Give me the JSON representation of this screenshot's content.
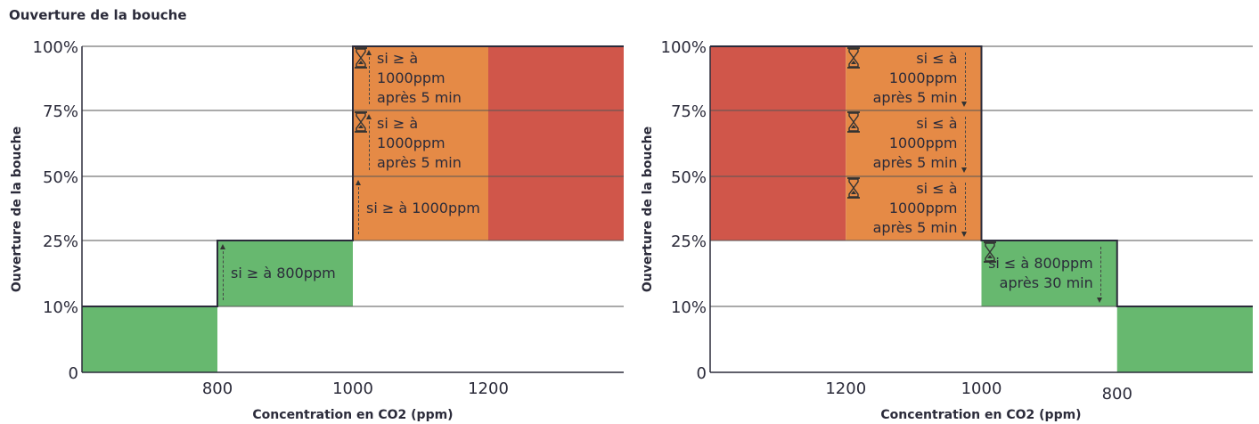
{
  "header": {
    "title": "Ouverture de la bouche"
  },
  "colors": {
    "green": "#67b86f",
    "orange": "#e58a46",
    "red": "#d0564a",
    "axis": "#2b2b3a",
    "grid": "#555555"
  },
  "chart_data": [
    {
      "type": "area",
      "xlabel": "Concentration en CO2 (ppm)",
      "ylabel": "Ouverture de la bouche",
      "x_ticks": [
        "800",
        "1000",
        "1200"
      ],
      "y_ticks": [
        "0",
        "10%",
        "25%",
        "50%",
        "75%",
        "100%"
      ],
      "xlim": [
        600,
        1400
      ],
      "direction": "increasing",
      "steps": [
        {
          "from": 600,
          "to": 800,
          "opening": "10%",
          "color": "green"
        },
        {
          "from": 800,
          "to": 1000,
          "opening": "25%",
          "color": "green"
        },
        {
          "from": 1000,
          "to": 1200,
          "opening": "100%",
          "color": "orange"
        },
        {
          "from": 1200,
          "to": 1400,
          "opening": "100%",
          "color": "red"
        }
      ],
      "annotations": [
        {
          "id": "l1",
          "x": [
            800,
            1000
          ],
          "y": [
            "10%",
            "25%"
          ],
          "lines": [
            "si ≥ à 800ppm"
          ],
          "arrow": "up",
          "hourglass": false
        },
        {
          "id": "l2",
          "x": [
            1000,
            1200
          ],
          "y": [
            "25%",
            "50%"
          ],
          "lines": [
            "si ≥ à 1000ppm"
          ],
          "arrow": "up",
          "hourglass": false
        },
        {
          "id": "l3",
          "x": [
            1000,
            1200
          ],
          "y": [
            "50%",
            "75%"
          ],
          "lines": [
            "si ≥ à 1000ppm",
            "après 5 min"
          ],
          "arrow": "up",
          "hourglass": true
        },
        {
          "id": "l4",
          "x": [
            1000,
            1200
          ],
          "y": [
            "75%",
            "100%"
          ],
          "lines": [
            "si ≥ à 1000ppm",
            "après 5 min"
          ],
          "arrow": "up",
          "hourglass": true
        }
      ]
    },
    {
      "type": "area",
      "xlabel": "Concentration en CO2 (ppm)",
      "ylabel": "Ouverture de la bouche",
      "x_ticks": [
        "1200",
        "1000",
        "800"
      ],
      "y_ticks": [
        "0",
        "10%",
        "25%",
        "50%",
        "75%",
        "100%"
      ],
      "xlim": [
        1400,
        600
      ],
      "direction": "decreasing",
      "steps": [
        {
          "from": 1400,
          "to": 1200,
          "opening": "100%",
          "color": "red"
        },
        {
          "from": 1200,
          "to": 1000,
          "opening": "100%",
          "color": "orange"
        },
        {
          "from": 1000,
          "to": 800,
          "opening": "25%",
          "color": "green"
        },
        {
          "from": 800,
          "to": 600,
          "opening": "10%",
          "color": "green"
        }
      ],
      "annotations": [
        {
          "id": "r1",
          "x": [
            1200,
            1000
          ],
          "y": [
            "75%",
            "100%"
          ],
          "lines": [
            "si ≤ à 1000ppm",
            "après 5 min"
          ],
          "arrow": "down",
          "hourglass": true
        },
        {
          "id": "r2",
          "x": [
            1200,
            1000
          ],
          "y": [
            "50%",
            "75%"
          ],
          "lines": [
            "si ≤ à 1000ppm",
            "après 5 min"
          ],
          "arrow": "down",
          "hourglass": true
        },
        {
          "id": "r3",
          "x": [
            1200,
            1000
          ],
          "y": [
            "25%",
            "50%"
          ],
          "lines": [
            "si ≤ à 1000ppm",
            "après 5 min"
          ],
          "arrow": "down",
          "hourglass": true
        },
        {
          "id": "r4",
          "x": [
            1000,
            800
          ],
          "y": [
            "10%",
            "25%"
          ],
          "lines": [
            "si ≤ à 800ppm",
            "après 30 min"
          ],
          "arrow": "down",
          "hourglass": true
        }
      ]
    }
  ]
}
